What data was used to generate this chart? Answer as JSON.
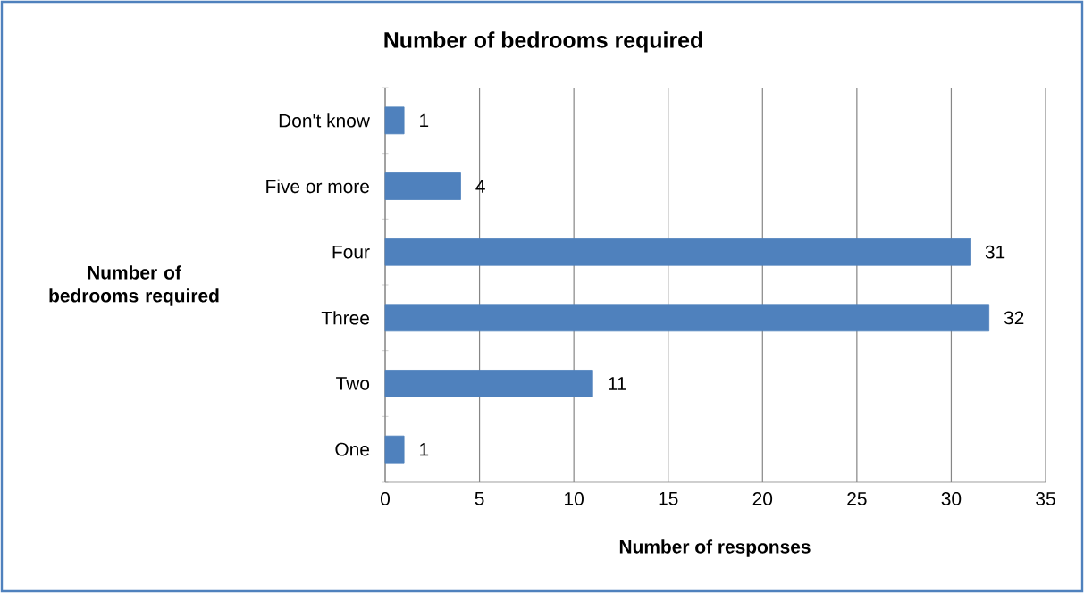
{
  "chart_data": {
    "type": "bar",
    "orientation": "horizontal",
    "title": "Number of bedrooms required",
    "xlabel": "Number of responses",
    "ylabel": "Number of bedrooms required",
    "categories": [
      "Don't know",
      "Five or more",
      "Four",
      "Three",
      "Two",
      "One"
    ],
    "values": [
      1,
      4,
      31,
      32,
      11,
      1
    ],
    "color": "#4f81bd",
    "xlim": [
      0,
      35
    ],
    "xticks": [
      0,
      5,
      10,
      15,
      20,
      25,
      30,
      35
    ],
    "grid": "x",
    "data_labels": true
  }
}
